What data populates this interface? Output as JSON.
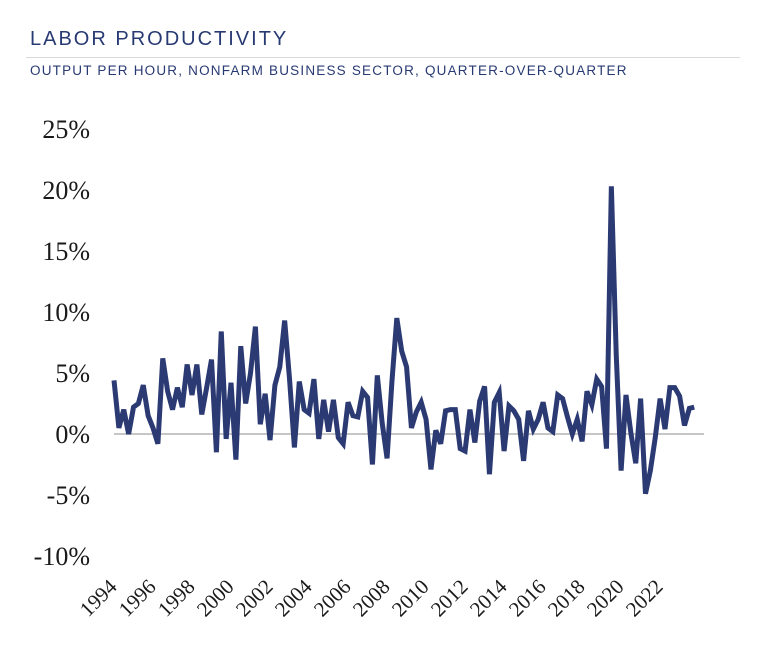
{
  "header": {
    "title": "LABOR PRODUCTIVITY",
    "subtitle": "OUTPUT PER HOUR, NONFARM BUSINESS SECTOR, QUARTER-OVER-QUARTER"
  },
  "colors": {
    "line": "#2b3a73",
    "zero_line": "#b3b3b3",
    "title": "#283a73"
  },
  "chart_data": {
    "type": "line",
    "title": "LABOR PRODUCTIVITY",
    "subtitle": "OUTPUT PER HOUR, NONFARM BUSINESS SECTOR, QUARTER-OVER-QUARTER",
    "xlabel": "",
    "ylabel": "",
    "ylim": [
      -10,
      25
    ],
    "yticks": [
      25,
      20,
      15,
      10,
      5,
      0,
      -5,
      -10
    ],
    "ytick_labels": [
      "25%",
      "20%",
      "15%",
      "10%",
      "5%",
      "0%",
      "-5%",
      "-10%"
    ],
    "xticks": [
      1994,
      1996,
      1998,
      2000,
      2002,
      2004,
      2006,
      2008,
      2010,
      2012,
      2014,
      2016,
      2018,
      2020,
      2022
    ],
    "xtick_labels": [
      "1994",
      "1996",
      "1998",
      "2000",
      "2002",
      "2004",
      "2006",
      "2008",
      "2010",
      "2012",
      "2014",
      "2016",
      "2018",
      "2020",
      "2022"
    ],
    "x_range": [
      1994,
      2024.25
    ],
    "grid": false,
    "legend": "none",
    "series": [
      {
        "x_start": 1994.0,
        "x_step": 0.25,
        "values": [
          4.4,
          0.5,
          2.0,
          0.0,
          2.2,
          2.5,
          4.0,
          1.5,
          0.5,
          -0.8,
          6.2,
          3.5,
          2.0,
          3.8,
          2.2,
          5.7,
          3.2,
          5.7,
          1.6,
          3.8,
          6.1,
          -1.5,
          8.4,
          -0.4,
          4.2,
          -2.1,
          7.2,
          2.5,
          5.0,
          8.8,
          0.8,
          3.3,
          -0.5,
          4.0,
          5.5,
          9.3,
          4.5,
          -1.1,
          4.3,
          2.0,
          1.7,
          4.5,
          -0.4,
          2.8,
          0.2,
          2.8,
          -0.3,
          -0.8,
          2.6,
          1.5,
          1.4,
          3.5,
          3.0,
          -2.5,
          4.8,
          0.9,
          -2.0,
          4.3,
          9.5,
          6.8,
          5.5,
          0.5,
          1.8,
          2.6,
          1.2,
          -2.9,
          0.3,
          -0.8,
          1.9,
          2.0,
          2.0,
          -1.2,
          -1.4,
          2.0,
          -0.7,
          2.7,
          3.9,
          -3.3,
          2.6,
          3.4,
          -1.4,
          2.3,
          1.9,
          1.2,
          -2.2,
          1.9,
          0.4,
          1.2,
          2.6,
          0.5,
          0.2,
          3.2,
          2.9,
          1.4,
          0.0,
          1.2,
          -0.6,
          3.5,
          2.4,
          4.5,
          3.9,
          -1.2,
          20.3,
          6.5,
          -3.0,
          3.2,
          0.1,
          -2.4,
          2.9,
          -4.9,
          -3.0,
          -0.3,
          2.9,
          0.4,
          3.8,
          3.8,
          3.1,
          0.7,
          2.1,
          2.2
        ]
      }
    ]
  }
}
